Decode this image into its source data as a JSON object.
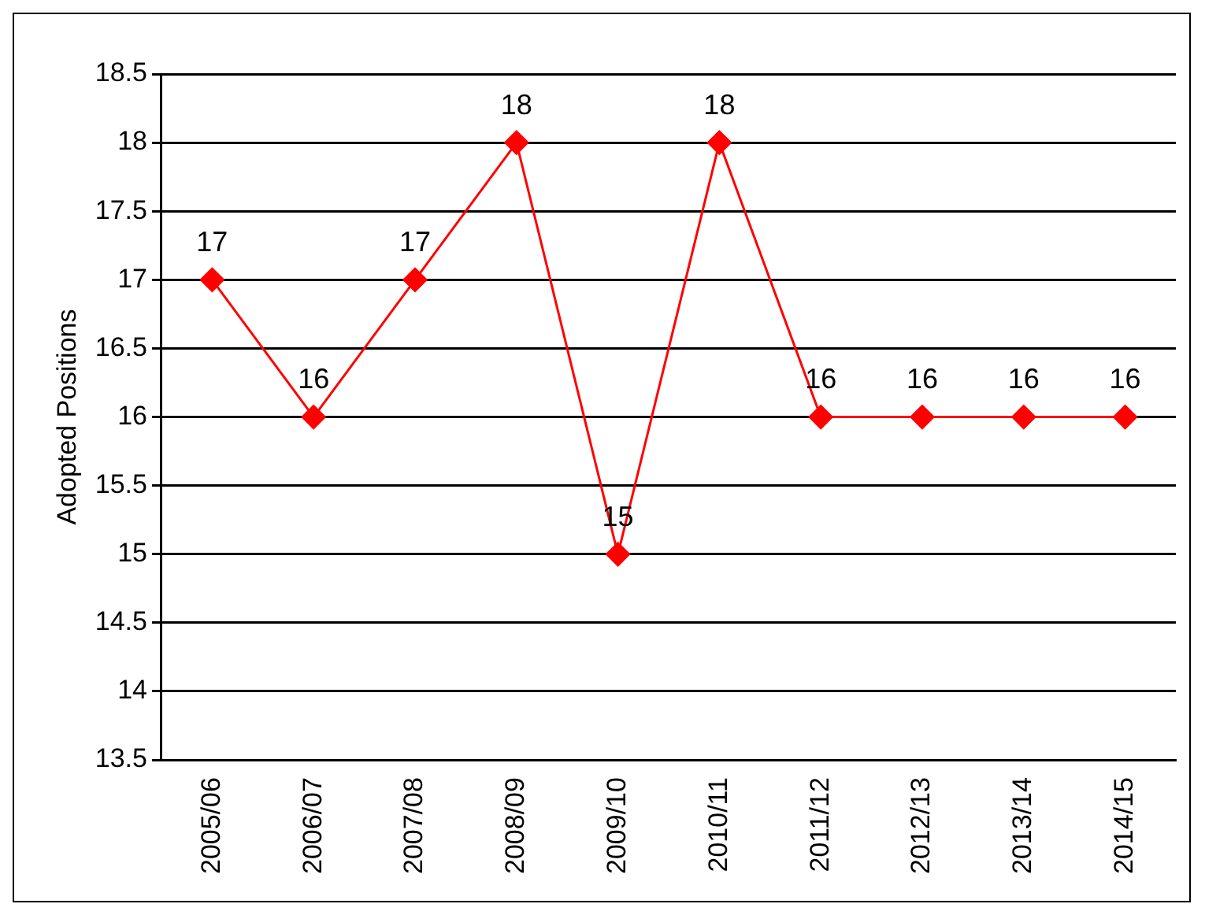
{
  "chart_data": {
    "type": "line",
    "ylabel": "Adopted Positions",
    "categories": [
      "2005/06",
      "2006/07",
      "2007/08",
      "2008/09",
      "2009/10",
      "2010/11",
      "2011/12",
      "2012/13",
      "2013/14",
      "2014/15"
    ],
    "series": [
      {
        "color": "#ff0000",
        "values": [
          17,
          16,
          17,
          18,
          15,
          18,
          16,
          16,
          16,
          16
        ]
      }
    ],
    "ylim": [
      13.5,
      18.5
    ],
    "yticks": [
      13.5,
      14,
      14.5,
      15,
      15.5,
      16,
      16.5,
      17,
      17.5,
      18,
      18.5
    ],
    "grid": "y",
    "legend": false,
    "marker": "diamond",
    "line_style": "solid",
    "data_labels": true
  }
}
